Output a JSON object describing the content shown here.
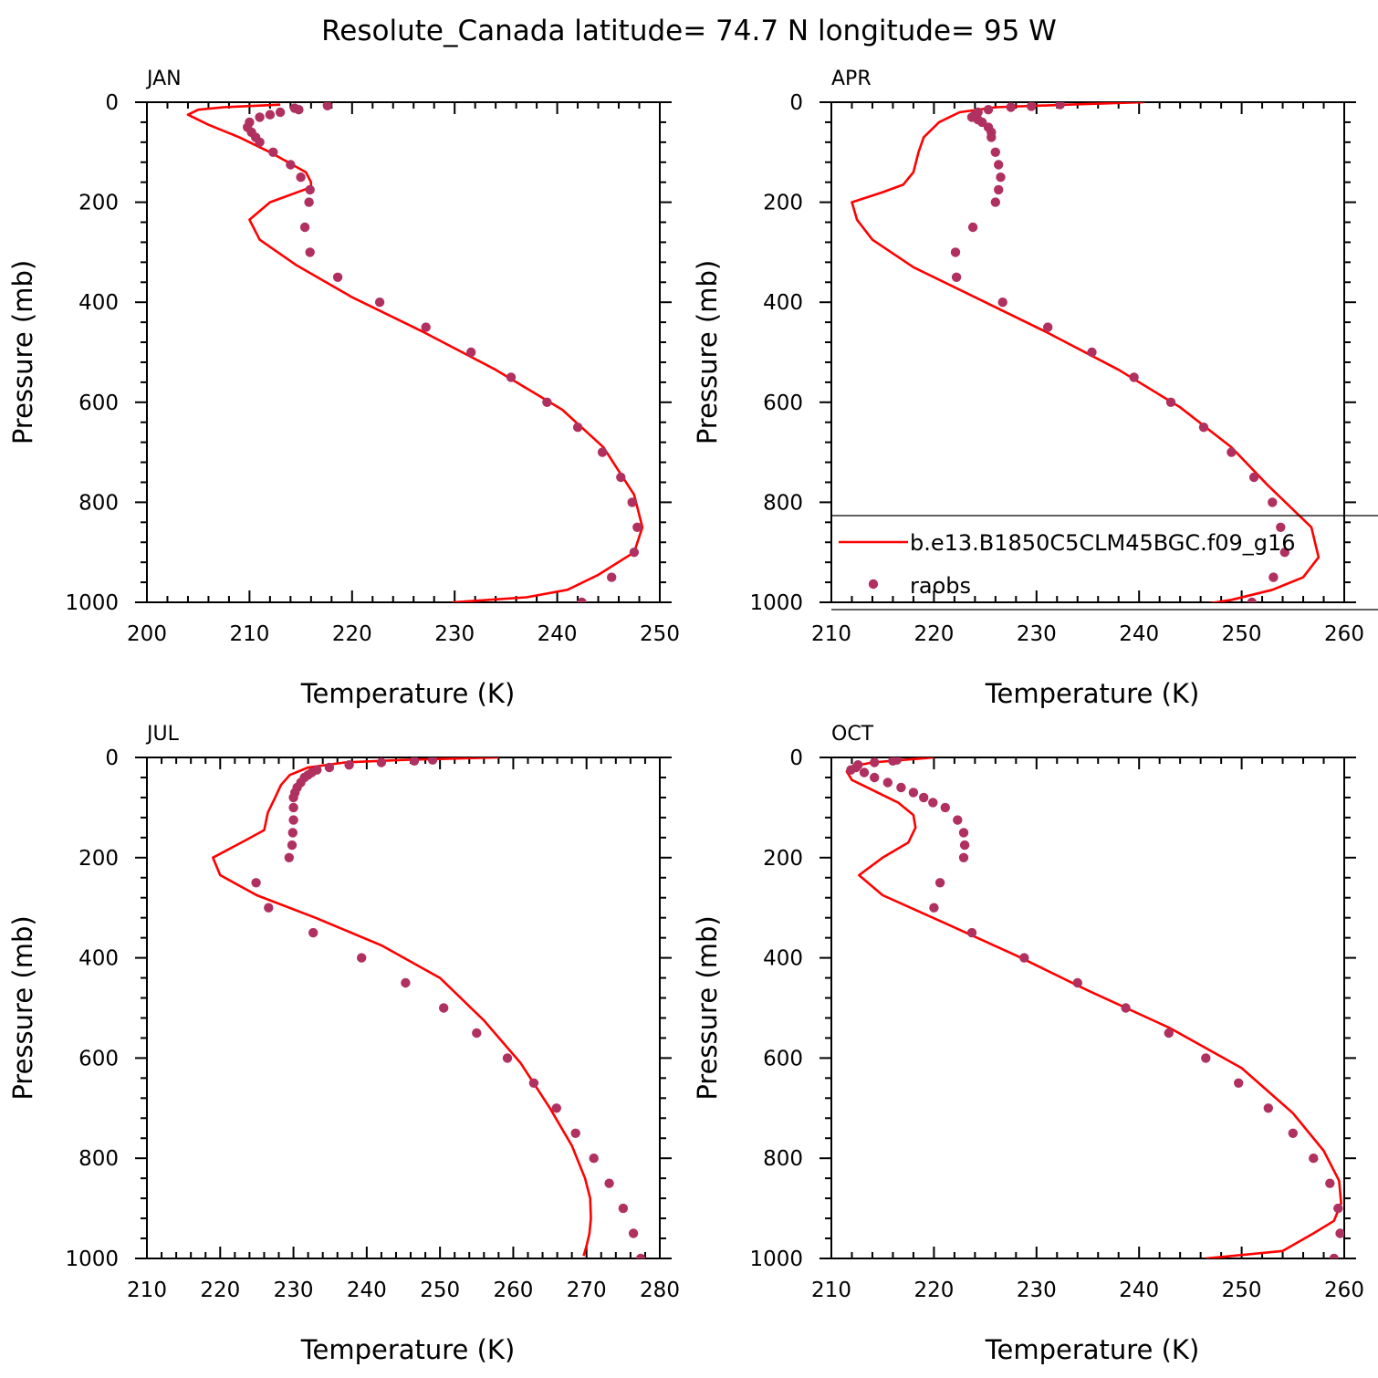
{
  "figure": {
    "title": "Resolute_Canada  latitude= 74.7 N longitude= 95 W",
    "legend": {
      "model_label": "b.e13.B1850C5CLM45BGC.f09_g16",
      "obs_label": "raobs"
    },
    "colors": {
      "model_line": "#ff0000",
      "obs_marker": "#b03060",
      "axes": "#000000"
    }
  },
  "chart_data": [
    {
      "type": "line+scatter",
      "panel": "JAN",
      "xlabel": "Temperature (K)",
      "ylabel": "Pressure (mb)",
      "xlim": [
        200,
        250
      ],
      "xticks": [
        200,
        210,
        220,
        230,
        240,
        250
      ],
      "ylim": [
        1000,
        0
      ],
      "yticks": [
        0,
        200,
        400,
        600,
        800,
        1000
      ],
      "model": {
        "name": "b.e13.B1850C5CLM45BGC.f09_g16",
        "t": [
          213,
          207.5,
          205,
          204,
          206,
          209,
          212,
          215.5,
          216,
          216,
          212,
          210,
          211,
          214.5,
          220,
          227,
          234,
          240.5,
          244.5,
          247.5,
          248.3,
          247.5,
          244,
          241,
          237,
          229.8
        ],
        "p": [
          5,
          10,
          15,
          25,
          45,
          70,
          100,
          140,
          160,
          170,
          200,
          235,
          275,
          325,
          390,
          460,
          535,
          615,
          690,
          785,
          850,
          900,
          945,
          975,
          990,
          1000
        ]
      },
      "obs": {
        "name": "raobs",
        "t": [
          217.6,
          214.8,
          214.4,
          213,
          212,
          211,
          209.8,
          210,
          210.2,
          210.6,
          211,
          212.3,
          214,
          215,
          215.9,
          215.8,
          215.4,
          215.9,
          218.6,
          222.7,
          227.2,
          231.6,
          235.5,
          239,
          242,
          244.4,
          246.2,
          247.3,
          247.8,
          247.5,
          245.3,
          242.4
        ],
        "p": [
          7,
          15,
          12,
          20,
          25,
          30,
          50,
          40,
          60,
          70,
          80,
          100,
          125,
          150,
          175,
          200,
          250,
          300,
          350,
          400,
          450,
          500,
          550,
          600,
          650,
          700,
          750,
          800,
          850,
          900,
          950,
          1000
        ]
      }
    },
    {
      "type": "line+scatter",
      "panel": "APR",
      "xlabel": "Temperature (K)",
      "ylabel": "Pressure (mb)",
      "xlim": [
        210,
        260
      ],
      "xticks": [
        210,
        220,
        230,
        240,
        250,
        260
      ],
      "ylim": [
        1000,
        0
      ],
      "yticks": [
        0,
        200,
        400,
        600,
        800,
        1000
      ],
      "model": {
        "name": "b.e13.B1850C5CLM45BGC.f09_g16",
        "t": [
          240.5,
          233,
          226,
          222.5,
          220.5,
          219,
          218.5,
          218,
          217,
          215,
          212,
          212.5,
          214,
          218,
          224,
          231,
          238,
          244,
          249,
          252.5,
          256.8,
          257.5,
          256,
          253,
          249,
          246
        ],
        "p": [
          0,
          5,
          10,
          20,
          40,
          70,
          100,
          140,
          165,
          180,
          200,
          235,
          275,
          330,
          390,
          460,
          535,
          610,
          690,
          765,
          850,
          910,
          950,
          975,
          995,
          1005
        ]
      },
      "obs": {
        "name": "raobs",
        "t": [
          232.3,
          229.5,
          227.5,
          225.3,
          224.3,
          224,
          223.7,
          224.3,
          224.7,
          225.3,
          225.6,
          225.6,
          226,
          226.3,
          226.5,
          226.3,
          226,
          223.8,
          222.1,
          222.2,
          226.7,
          231.1,
          235.4,
          239.5,
          243.1,
          246.3,
          249,
          251.2,
          253,
          253.8,
          254.2,
          253.1,
          251
        ],
        "p": [
          5,
          8,
          10,
          15,
          20,
          25,
          30,
          35,
          40,
          50,
          60,
          70,
          100,
          125,
          150,
          175,
          200,
          250,
          300,
          350,
          400,
          450,
          500,
          550,
          600,
          650,
          700,
          750,
          800,
          850,
          900,
          950,
          1000
        ]
      }
    },
    {
      "type": "line+scatter",
      "panel": "JUL",
      "xlabel": "Temperature (K)",
      "ylabel": "Pressure (mb)",
      "xlim": [
        210,
        280
      ],
      "xticks": [
        210,
        220,
        230,
        240,
        250,
        260,
        270,
        280
      ],
      "ylim": [
        1000,
        0
      ],
      "yticks": [
        0,
        200,
        400,
        600,
        800,
        1000
      ],
      "model": {
        "name": "b.e13.B1850C5CLM45BGC.f09_g16",
        "t": [
          258,
          245,
          237,
          232,
          229.5,
          228.3,
          227.5,
          226.5,
          226,
          223.5,
          219,
          220,
          225,
          233,
          242,
          250,
          256,
          261,
          265,
          268,
          269.8,
          270.5,
          270.6,
          270.4,
          270,
          269.6
        ],
        "p": [
          0,
          5,
          10,
          20,
          35,
          55,
          80,
          110,
          145,
          165,
          200,
          235,
          275,
          320,
          375,
          440,
          525,
          610,
          700,
          775,
          840,
          880,
          920,
          950,
          975,
          995
        ]
      },
      "obs": {
        "name": "raobs",
        "t": [
          249,
          246.5,
          242,
          237.6,
          234.9,
          233.2,
          232.5,
          232,
          231.5,
          231,
          230.5,
          230.2,
          230,
          230,
          230,
          229.9,
          229.8,
          229.4,
          224.9,
          226.6,
          232.7,
          239.3,
          245.3,
          250.5,
          255,
          259.2,
          262.8,
          265.9,
          268.5,
          271,
          273.1,
          275,
          276.4,
          277.4
        ],
        "p": [
          5,
          7,
          10,
          15,
          20,
          25,
          30,
          35,
          40,
          50,
          60,
          70,
          80,
          100,
          125,
          150,
          175,
          200,
          250,
          300,
          350,
          400,
          450,
          500,
          550,
          600,
          650,
          700,
          750,
          800,
          850,
          900,
          950,
          1000
        ]
      }
    },
    {
      "type": "line+scatter",
      "panel": "OCT",
      "xlabel": "Temperature (K)",
      "ylabel": "Pressure (mb)",
      "xlim": [
        210,
        260
      ],
      "xticks": [
        210,
        220,
        230,
        240,
        250,
        260
      ],
      "ylim": [
        1000,
        0
      ],
      "yticks": [
        0,
        200,
        400,
        600,
        800,
        1000
      ],
      "model": {
        "name": "b.e13.B1850C5CLM45BGC.f09_g16",
        "t": [
          220,
          217,
          214,
          212,
          211.5,
          212,
          214,
          216.5,
          218,
          218.2,
          217.5,
          215,
          212.7,
          215,
          221,
          228,
          235,
          243,
          250,
          255,
          258,
          259.5,
          259.7,
          259,
          257,
          254,
          246.5
        ],
        "p": [
          0,
          5,
          10,
          18,
          28,
          45,
          65,
          90,
          115,
          140,
          170,
          200,
          235,
          275,
          330,
          395,
          465,
          540,
          620,
          710,
          785,
          845,
          890,
          925,
          950,
          985,
          1000
        ]
      },
      "obs": {
        "name": "raobs",
        "t": [
          216.4,
          216,
          214.2,
          212.6,
          212.4,
          211.9,
          213.2,
          214.2,
          215.5,
          216.8,
          218,
          219,
          219.9,
          221.1,
          222.3,
          222.9,
          223,
          222.9,
          220.6,
          220,
          223.7,
          228.8,
          234,
          238.7,
          242.9,
          246.5,
          249.7,
          252.6,
          255,
          257,
          258.6,
          259.4,
          259.6,
          259
        ],
        "p": [
          5,
          7,
          10,
          15,
          20,
          25,
          30,
          40,
          50,
          60,
          70,
          80,
          90,
          100,
          125,
          150,
          175,
          200,
          250,
          300,
          350,
          400,
          450,
          500,
          550,
          600,
          650,
          700,
          750,
          800,
          850,
          900,
          950,
          1000
        ]
      }
    }
  ]
}
